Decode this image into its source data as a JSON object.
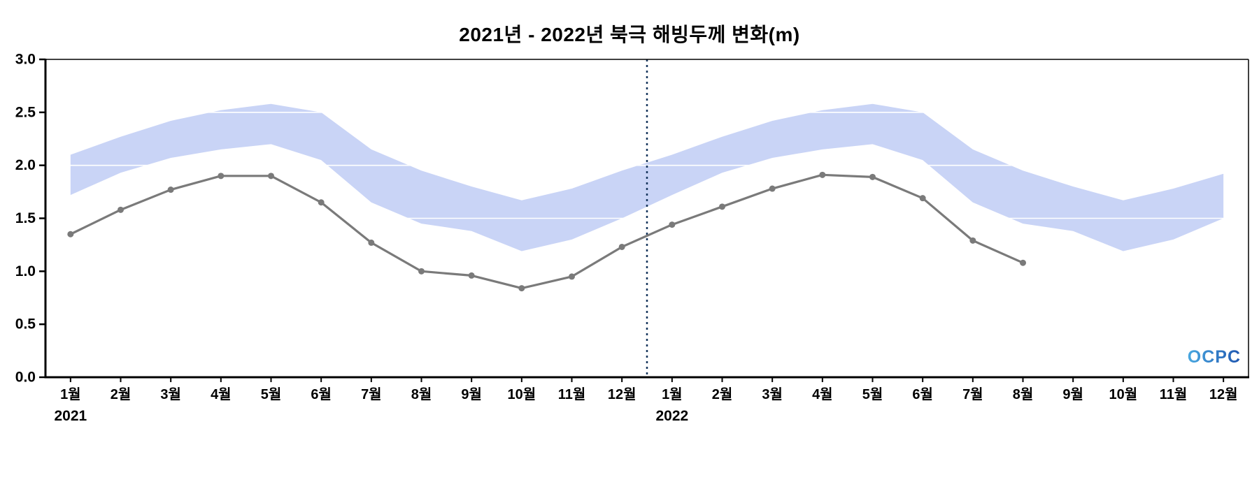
{
  "logo": "OCPC",
  "chart_data": {
    "type": "line",
    "title": "2021년 - 2022년 북극 해빙두께 변화(m)",
    "ylabel": "",
    "xlabel": "",
    "ylim": [
      0.0,
      3.0
    ],
    "yticks": [
      0.0,
      0.5,
      1.0,
      1.5,
      2.0,
      2.5,
      3.0
    ],
    "grid": "horizontal-white-over-band",
    "legend_position": "none",
    "categories": [
      "1월",
      "2월",
      "3월",
      "4월",
      "5월",
      "6월",
      "7월",
      "8월",
      "9월",
      "10월",
      "11월",
      "12월",
      "1월",
      "2월",
      "3월",
      "4월",
      "5월",
      "6월",
      "7월",
      "8월",
      "9월",
      "10월",
      "11월",
      "12월"
    ],
    "year_labels": [
      {
        "index": 0,
        "label": "2021"
      },
      {
        "index": 12,
        "label": "2022"
      }
    ],
    "divider_between": [
      11,
      12
    ],
    "divider_color": "#17365d",
    "line": {
      "color": "#7a7a7a",
      "values": [
        1.35,
        1.58,
        1.77,
        1.9,
        1.9,
        1.65,
        1.27,
        1.0,
        0.96,
        0.84,
        0.95,
        1.23,
        1.44,
        1.61,
        1.78,
        1.91,
        1.89,
        1.69,
        1.29,
        1.08,
        null,
        null,
        null,
        null
      ]
    },
    "band": {
      "color": "#c9d4f6",
      "upper": [
        2.1,
        2.27,
        2.42,
        2.52,
        2.58,
        2.5,
        2.15,
        1.95,
        1.8,
        1.67,
        1.78,
        1.95,
        2.1,
        2.27,
        2.42,
        2.52,
        2.58,
        2.5,
        2.15,
        1.95,
        1.8,
        1.67,
        1.78,
        1.92
      ],
      "lower": [
        1.72,
        1.93,
        2.07,
        2.15,
        2.2,
        2.05,
        1.65,
        1.45,
        1.38,
        1.19,
        1.3,
        1.5,
        1.72,
        1.93,
        2.07,
        2.15,
        2.2,
        2.05,
        1.65,
        1.45,
        1.38,
        1.19,
        1.3,
        1.5
      ]
    }
  }
}
